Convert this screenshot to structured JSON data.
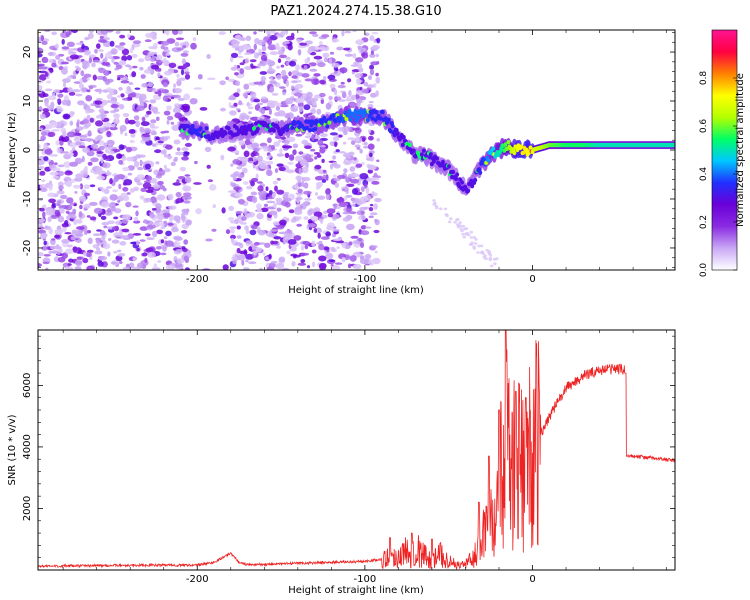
{
  "figure": {
    "title": "PAZ1.2024.274.15.38.G10",
    "colors": {
      "snr_line": "#ee2222",
      "axis": "#000000"
    }
  },
  "chart_data": [
    {
      "type": "heatmap",
      "xlabel": "Height of straight line (km)",
      "ylabel": "Frequency (Hz)",
      "xlim": [
        -295,
        85
      ],
      "ylim": [
        -24.5,
        24.5
      ],
      "x_ticks": [
        -200,
        -100,
        0
      ],
      "y_ticks": [
        -20,
        -10,
        0,
        10,
        20
      ],
      "colorbar": {
        "label": "Normalized spectral amplitude",
        "range": [
          0,
          1
        ],
        "ticks": [
          0.0,
          0.2,
          0.4,
          0.6,
          0.8
        ],
        "colormap": [
          "#ffffff",
          "#c9a8f5",
          "#8a2be2",
          "#6a00d8",
          "#2030ff",
          "#00c8ff",
          "#00ff66",
          "#b4ff00",
          "#ffff00",
          "#ff8000",
          "#ff0040",
          "#ff1493"
        ]
      },
      "noise_band": {
        "x_range": [
          -295,
          -100
        ],
        "gap_x": [
          -205,
          -180
        ]
      },
      "ridge": {
        "x": [
          -210,
          -200,
          -190,
          -180,
          -170,
          -160,
          -150,
          -140,
          -130,
          -120,
          -110,
          -100,
          -95,
          -90,
          -85,
          -80,
          -75,
          -70,
          -65,
          -60,
          -55,
          -50,
          -45,
          -40,
          -35,
          -30,
          -25,
          -20,
          -15,
          -10,
          -5,
          0,
          10,
          20,
          30,
          40,
          50,
          60,
          70,
          85
        ],
        "y": [
          4,
          4,
          3,
          4,
          4,
          5,
          4,
          5,
          5,
          6,
          7,
          7,
          7,
          7,
          5,
          3,
          1,
          -1,
          -1,
          -2,
          -3,
          -4,
          -6,
          -8,
          -6,
          -3,
          -1,
          0,
          1,
          0,
          0,
          0,
          1,
          1,
          1,
          1,
          1,
          1,
          1,
          1
        ],
        "amplitude": [
          0.3,
          0.35,
          0.3,
          0.3,
          0.3,
          0.3,
          0.3,
          0.35,
          0.35,
          0.35,
          0.4,
          0.4,
          0.35,
          0.35,
          0.35,
          0.3,
          0.3,
          0.3,
          0.3,
          0.3,
          0.3,
          0.3,
          0.3,
          0.3,
          0.3,
          0.35,
          0.45,
          0.5,
          0.6,
          0.7,
          0.75,
          0.7,
          0.6,
          0.55,
          0.55,
          0.5,
          0.5,
          0.5,
          0.5,
          0.5
        ]
      }
    },
    {
      "type": "line",
      "xlabel": "Height of straight line (km)",
      "ylabel": "SNR (10 * v/v)",
      "xlim": [
        -295,
        85
      ],
      "ylim": [
        0,
        7800
      ],
      "x_ticks": [
        -200,
        -100,
        0
      ],
      "y_ticks": [
        2000,
        4000,
        6000
      ],
      "series": [
        {
          "x": [
            -295,
            -250,
            -200,
            -190,
            -180,
            -175,
            -170,
            -150,
            -120,
            -100,
            -90,
            -80,
            -75,
            -70,
            -65,
            -60,
            -55,
            -50,
            -45,
            -40,
            -35,
            -30,
            -25,
            -20,
            -15,
            -10,
            -5,
            0,
            10,
            20,
            30,
            40,
            50,
            55,
            57,
            60,
            70,
            85
          ],
          "y": [
            120,
            150,
            160,
            250,
            550,
            250,
            170,
            200,
            250,
            280,
            350,
            450,
            600,
            700,
            500,
            300,
            500,
            300,
            150,
            200,
            400,
            1200,
            2200,
            3100,
            4000,
            3200,
            3500,
            3800,
            5000,
            5900,
            6300,
            6500,
            6550,
            6500,
            3700,
            3700,
            3650,
            3550
          ],
          "spikes": [
            {
              "x": -85,
              "y": 1050
            },
            {
              "x": -72,
              "y": 1200
            },
            {
              "x": -60,
              "y": 1000
            },
            {
              "x": -32,
              "y": 2200
            },
            {
              "x": -26,
              "y": 3700
            },
            {
              "x": -20,
              "y": 5200
            },
            {
              "x": -16,
              "y": 7800
            },
            {
              "x": -10,
              "y": 5800
            },
            {
              "x": -4,
              "y": 5600
            }
          ]
        }
      ]
    }
  ]
}
